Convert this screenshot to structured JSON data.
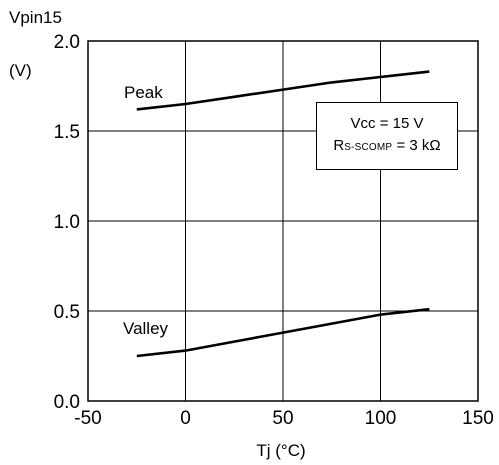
{
  "chart_data": {
    "type": "line",
    "ylabel_line1": "Vpin15",
    "ylabel_line2": "(V)",
    "xlabel": "Tj  (°C)",
    "xlim": [
      -50,
      150
    ],
    "ylim": [
      0.0,
      2.0
    ],
    "xticks": [
      "-50",
      "0",
      "50",
      "100",
      "150"
    ],
    "yticks": [
      "0.0",
      "0.5",
      "1.0",
      "1.5",
      "2.0"
    ],
    "grid": true,
    "series": [
      {
        "name": "Peak",
        "points": [
          [
            -25,
            1.62
          ],
          [
            0,
            1.65
          ],
          [
            25,
            1.69
          ],
          [
            50,
            1.73
          ],
          [
            75,
            1.77
          ],
          [
            100,
            1.8
          ],
          [
            125,
            1.83
          ]
        ]
      },
      {
        "name": "Valley",
        "points": [
          [
            -25,
            0.25
          ],
          [
            0,
            0.28
          ],
          [
            25,
            0.33
          ],
          [
            50,
            0.38
          ],
          [
            75,
            0.43
          ],
          [
            100,
            0.48
          ],
          [
            125,
            0.51
          ]
        ]
      }
    ],
    "legend": {
      "line1_main": "Vcc",
      "line1_rest": " = 15 V",
      "line2_main": "R",
      "line2_sub": "S-SCOMP",
      "line2_rest": " = 3 kΩ"
    }
  }
}
